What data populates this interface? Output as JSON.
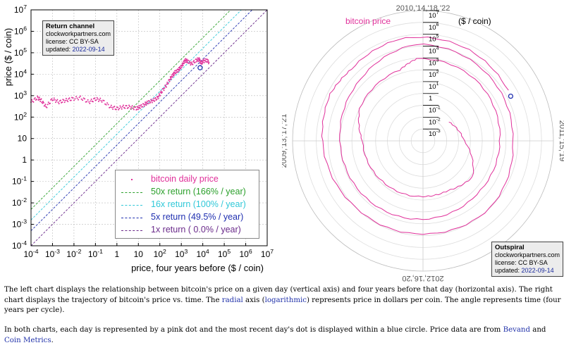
{
  "left_box": {
    "title": "Return channel",
    "site": "clockworkpartners.com",
    "license": "license: CC BY-SA",
    "updated_label": "updated: ",
    "updated_date": "2022-09-14"
  },
  "right_box": {
    "title": "Outspiral",
    "site": "clockworkpartners.com",
    "license": "license: CC BY-SA",
    "updated_label": "updated: ",
    "updated_date": "2022-09-14"
  },
  "legend": [
    {
      "label": "bitcoin daily price",
      "color": "#e0309a",
      "style": "dot"
    },
    {
      "label": "50x return (166% / year)",
      "color": "#2ca02c",
      "style": "dash"
    },
    {
      "label": "16x return (100% / year)",
      "color": "#30c8d8",
      "style": "dash"
    },
    {
      "label": "5x return (49.5% / year)",
      "color": "#1f2fb0",
      "style": "dash"
    },
    {
      "label": "1x return ( 0.0% / year)",
      "color": "#6a2a8a",
      "style": "dash"
    }
  ],
  "caption": {
    "p1_a": "The left chart displays the relationship between bitcoin's price on a given day (vertical axis) and four years before that day (horizontal axis). The right chart displays the trajectory of bitcoin's price vs. time. The ",
    "p1_link1": "radial",
    "p1_b": " axis (",
    "p1_link2": "logarithmic",
    "p1_c": ") represents price in dollars per coin. The angle represents time (four years per cycle).",
    "p2_a": "In both charts, each day is represented by a pink dot and the most recent day's dot is displayed within a blue circle. Price data are from ",
    "p2_link1": "Bevand",
    "p2_b": " and ",
    "p2_link2": "Coin Metrics",
    "p2_c": "."
  },
  "chart_data": [
    {
      "type": "scatter",
      "xlabel": "price, four years before ($ / coin)",
      "ylabel": "price ($ / coin)",
      "xscale": "log",
      "yscale": "log",
      "xlim": [
        0.0001,
        10000000
      ],
      "ylim": [
        0.0001,
        10000000
      ],
      "grid": true,
      "x_ticks": [
        "10^-4",
        "10^-3",
        "10^-2",
        "10^-1",
        "1",
        "10",
        "10^2",
        "10^3",
        "10^4",
        "10^5",
        "10^6",
        "10^7"
      ],
      "y_ticks": [
        "10^-4",
        "10^-3",
        "10^-2",
        "10^-1",
        "1",
        "10",
        "10^2",
        "10^3",
        "10^4",
        "10^5",
        "10^6",
        "10^7"
      ],
      "return_lines": [
        {
          "name": "50x return (166% / year)",
          "multiplier": 50
        },
        {
          "name": "16x return (100% / year)",
          "multiplier": 16
        },
        {
          "name": "5x return (49.5% / year)",
          "multiplier": 5
        },
        {
          "name": "1x return ( 0.0% / year)",
          "multiplier": 1
        }
      ],
      "series": [
        {
          "name": "bitcoin daily price",
          "points": [
            [
              0.0001,
              500
            ],
            [
              0.0002,
              800
            ],
            [
              0.0003,
              600
            ],
            [
              0.0005,
              300
            ],
            [
              0.001,
              700
            ],
            [
              0.002,
              500
            ],
            [
              0.004,
              600
            ],
            [
              0.008,
              700
            ],
            [
              0.02,
              800
            ],
            [
              0.05,
              500
            ],
            [
              0.1,
              700
            ],
            [
              0.2,
              600
            ],
            [
              0.5,
              300
            ],
            [
              1,
              250
            ],
            [
              2,
              300
            ],
            [
              4,
              300
            ],
            [
              8,
              250
            ],
            [
              12,
              300
            ],
            [
              20,
              400
            ],
            [
              30,
              500
            ],
            [
              50,
              600
            ],
            [
              80,
              800
            ],
            [
              120,
              1500
            ],
            [
              200,
              3000
            ],
            [
              300,
              6000
            ],
            [
              400,
              9000
            ],
            [
              500,
              12000
            ],
            [
              700,
              15000
            ],
            [
              900,
              20000
            ],
            [
              1200,
              30000
            ],
            [
              1500,
              45000
            ],
            [
              2000,
              40000
            ],
            [
              3000,
              30000
            ],
            [
              5000,
              45000
            ],
            [
              7000,
              50000
            ],
            [
              8000,
              30000
            ],
            [
              10000,
              40000
            ],
            [
              15000,
              45000
            ],
            [
              20000,
              35000
            ]
          ]
        },
        {
          "name": "most recent day",
          "points": [
            [
              7500,
              20000
            ]
          ]
        }
      ]
    },
    {
      "type": "line",
      "subtype": "polar",
      "title": "bitcoin price",
      "radial_axis_label": "($ / coin)",
      "radial_scale": "log",
      "radial_ticks": [
        "10^-3",
        "10^-2",
        "10^-1",
        "1",
        "10^1",
        "10^2",
        "10^3",
        "10^4",
        "10^5",
        "10^6",
        "10^7"
      ],
      "angle_labels": [
        "2010,'14,'18,'22",
        "2011,'15,'19",
        "2012,'16,'20",
        "2009,'13,'17,'21"
      ],
      "angular_period_years": 4,
      "series": [
        {
          "name": "bitcoin price",
          "points": [
            [
              2010.6,
              0.05
            ],
            [
              2011.0,
              0.3
            ],
            [
              2011.4,
              15
            ],
            [
              2011.7,
              5
            ],
            [
              2012.0,
              5
            ],
            [
              2012.5,
              7
            ],
            [
              2013.0,
              13
            ],
            [
              2013.3,
              100
            ],
            [
              2013.8,
              200
            ],
            [
              2013.95,
              900
            ],
            [
              2014.5,
              600
            ],
            [
              2015.0,
              300
            ],
            [
              2015.5,
              250
            ],
            [
              2016.0,
              420
            ],
            [
              2016.5,
              650
            ],
            [
              2017.0,
              1000
            ],
            [
              2017.5,
              2500
            ],
            [
              2017.95,
              15000
            ],
            [
              2018.5,
              6500
            ],
            [
              2019.0,
              3700
            ],
            [
              2019.5,
              10000
            ],
            [
              2020.0,
              7200
            ],
            [
              2020.5,
              9500
            ],
            [
              2021.0,
              30000
            ],
            [
              2021.3,
              58000
            ],
            [
              2021.5,
              35000
            ],
            [
              2021.85,
              65000
            ],
            [
              2022.3,
              40000
            ],
            [
              2022.7,
              20000
            ]
          ]
        },
        {
          "name": "most recent day",
          "points": [
            [
              2022.7,
              20000
            ]
          ]
        }
      ]
    }
  ]
}
